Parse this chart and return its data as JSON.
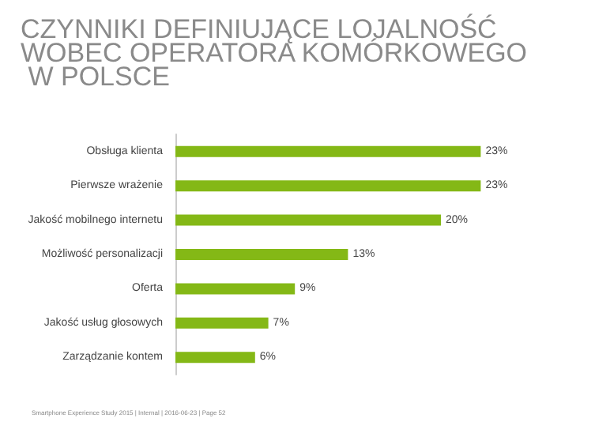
{
  "chart_data": {
    "type": "bar",
    "orientation": "horizontal",
    "title": "CZYNNIKI DEFINIUJĄCE LOJALNOŚĆ WOBEC OPERATORA KOMÓRKOWEGO W POLSCE",
    "categories": [
      "Obsługa klienta",
      "Pierwsze wrażenie",
      "Jakość mobilnego internetu",
      "Możliwość personalizacji",
      "Oferta",
      "Jakość usług głosowych",
      "Zarządzanie kontem"
    ],
    "values": [
      23,
      23,
      20,
      13,
      9,
      7,
      6
    ],
    "value_labels": [
      "23%",
      "23%",
      "20%",
      "13%",
      "9%",
      "7%",
      "6%"
    ],
    "color": "#84b816",
    "annotations": [
      "Smartphone Experience Study 2015 | Internal | 2016-06-23 | Page 52"
    ]
  }
}
